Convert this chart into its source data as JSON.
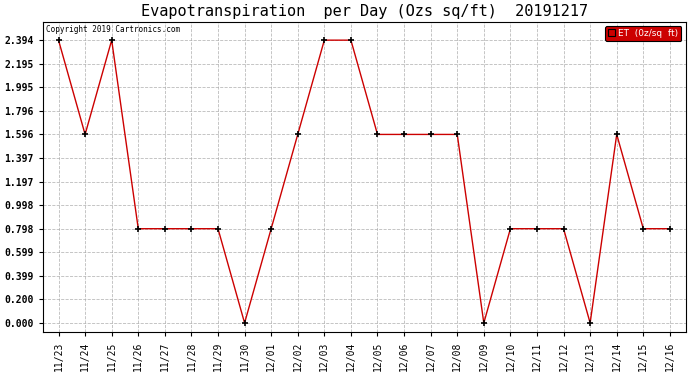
{
  "title": "Evapotranspiration  per Day (Ozs sq/ft)  20191217",
  "copyright": "Copyright 2019 Cartronics.com",
  "legend_label": "ET  (0z/sq  ft)",
  "dates": [
    "11/23",
    "11/24",
    "11/25",
    "11/26",
    "11/27",
    "11/28",
    "11/29",
    "11/30",
    "12/01",
    "12/02",
    "12/03",
    "12/04",
    "12/05",
    "12/06",
    "12/07",
    "12/08",
    "12/09",
    "12/10",
    "12/11",
    "12/12",
    "12/13",
    "12/14",
    "12/15",
    "12/16"
  ],
  "values": [
    2.394,
    1.596,
    2.394,
    0.798,
    0.798,
    0.798,
    0.798,
    0.0,
    0.798,
    1.596,
    2.394,
    2.394,
    1.596,
    1.596,
    1.596,
    1.596,
    0.0,
    0.798,
    0.798,
    0.798,
    0.0,
    1.596,
    0.798,
    0.798
  ],
  "line_color": "#cc0000",
  "marker_color": "#000000",
  "bg_color": "#ffffff",
  "grid_color": "#aaaaaa",
  "yticks": [
    0.0,
    0.2,
    0.399,
    0.599,
    0.798,
    0.998,
    1.197,
    1.397,
    1.596,
    1.796,
    1.995,
    2.195,
    2.394
  ],
  "ylim": [
    -0.08,
    2.55
  ],
  "xlim": [
    -0.6,
    23.6
  ],
  "title_fontsize": 11,
  "tick_fontsize": 7,
  "legend_bg": "#cc0000",
  "legend_fg": "#ffffff"
}
